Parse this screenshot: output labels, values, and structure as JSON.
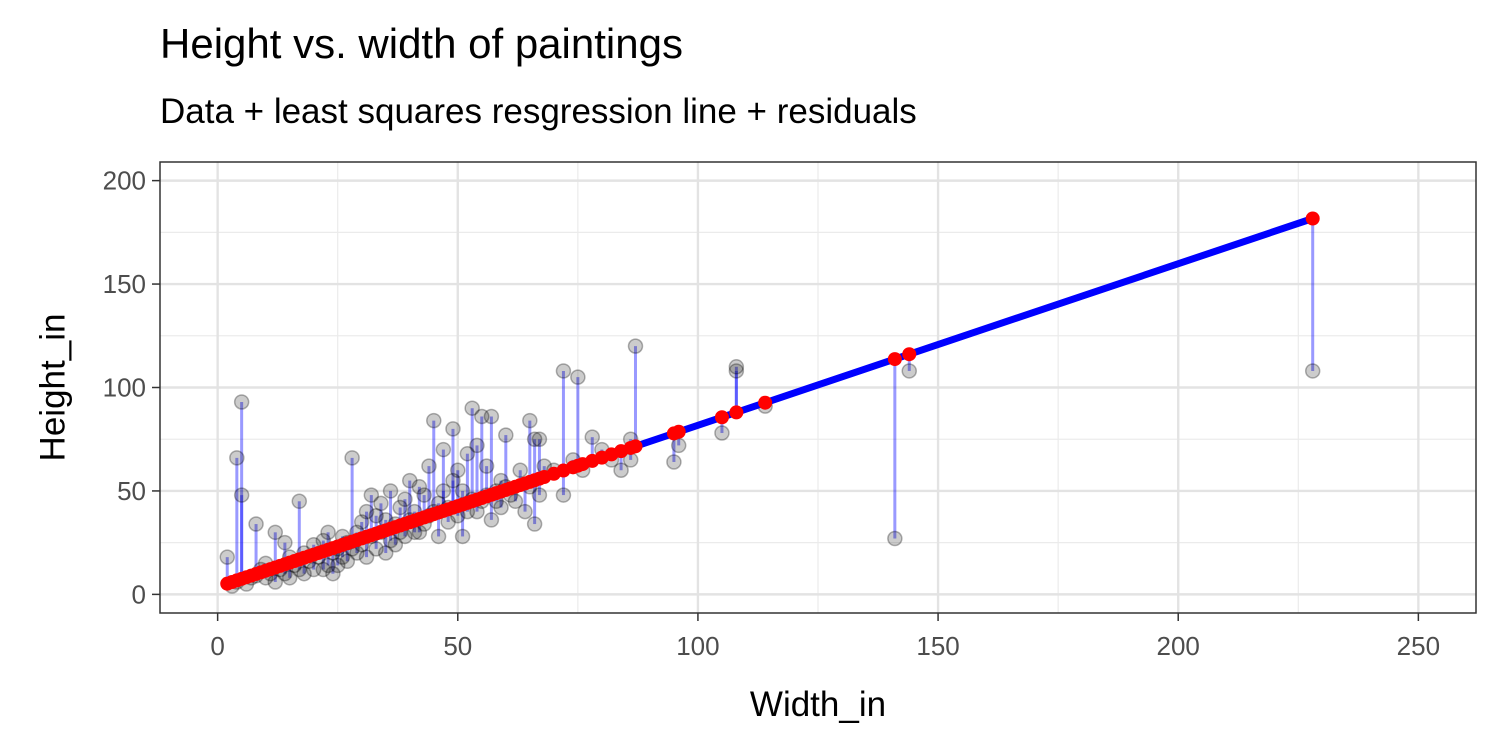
{
  "title": "Height vs. width of paintings",
  "subtitle": "Data + least squares resgression line + residuals",
  "chart_data": {
    "type": "scatter",
    "title": "Height vs. width of paintings",
    "subtitle": "Data + least squares resgression line + residuals",
    "xlabel": "Width_in",
    "ylabel": "Height_in",
    "xlim": [
      -12,
      262
    ],
    "ylim": [
      -9,
      209
    ],
    "xticks": [
      0,
      50,
      100,
      150,
      200,
      250
    ],
    "yticks": [
      0,
      50,
      100,
      150,
      200
    ],
    "grid": true,
    "legend": "none",
    "regression": {
      "intercept": 3.62,
      "slope": 0.781,
      "x_range": [
        2,
        228
      ],
      "color": "#0000ff"
    },
    "colors": {
      "points": "#000000",
      "fitted": "#ff0000",
      "residual": "#0000ff",
      "line": "#0000ff"
    },
    "points": [
      [
        2,
        18
      ],
      [
        3,
        4
      ],
      [
        4,
        66
      ],
      [
        4,
        6
      ],
      [
        5,
        48
      ],
      [
        5,
        93
      ],
      [
        6,
        5
      ],
      [
        7,
        8
      ],
      [
        8,
        34
      ],
      [
        8,
        9
      ],
      [
        9,
        12
      ],
      [
        10,
        8
      ],
      [
        10,
        15
      ],
      [
        11,
        10
      ],
      [
        12,
        30
      ],
      [
        12,
        6
      ],
      [
        13,
        12
      ],
      [
        14,
        25
      ],
      [
        14,
        10
      ],
      [
        15,
        8
      ],
      [
        15,
        18
      ],
      [
        16,
        14
      ],
      [
        17,
        45
      ],
      [
        17,
        12
      ],
      [
        18,
        20
      ],
      [
        18,
        10
      ],
      [
        19,
        16
      ],
      [
        20,
        24
      ],
      [
        20,
        12
      ],
      [
        21,
        18
      ],
      [
        22,
        26
      ],
      [
        22,
        12
      ],
      [
        23,
        30
      ],
      [
        23,
        14
      ],
      [
        24,
        20
      ],
      [
        24,
        10
      ],
      [
        25,
        22
      ],
      [
        25,
        14
      ],
      [
        26,
        18
      ],
      [
        26,
        28
      ],
      [
        27,
        25
      ],
      [
        27,
        16
      ],
      [
        28,
        66
      ],
      [
        28,
        22
      ],
      [
        29,
        30
      ],
      [
        29,
        20
      ],
      [
        30,
        35
      ],
      [
        30,
        24
      ],
      [
        31,
        40
      ],
      [
        31,
        18
      ],
      [
        32,
        28
      ],
      [
        32,
        48
      ],
      [
        33,
        38
      ],
      [
        33,
        22
      ],
      [
        34,
        30
      ],
      [
        34,
        44
      ],
      [
        35,
        36
      ],
      [
        35,
        20
      ],
      [
        36,
        26
      ],
      [
        36,
        50
      ],
      [
        37,
        34
      ],
      [
        37,
        24
      ],
      [
        38,
        42
      ],
      [
        38,
        30
      ],
      [
        39,
        28
      ],
      [
        39,
        46
      ],
      [
        40,
        55
      ],
      [
        40,
        36
      ],
      [
        41,
        40
      ],
      [
        41,
        30
      ],
      [
        42,
        30
      ],
      [
        42,
        52
      ],
      [
        43,
        48
      ],
      [
        43,
        34
      ],
      [
        44,
        62
      ],
      [
        44,
        38
      ],
      [
        45,
        84
      ],
      [
        45,
        40
      ],
      [
        46,
        44
      ],
      [
        46,
        28
      ],
      [
        47,
        70
      ],
      [
        47,
        50
      ],
      [
        48,
        42
      ],
      [
        48,
        35
      ],
      [
        49,
        80
      ],
      [
        49,
        55
      ],
      [
        50,
        60
      ],
      [
        50,
        38
      ],
      [
        51,
        28
      ],
      [
        51,
        50
      ],
      [
        52,
        68
      ],
      [
        52,
        40
      ],
      [
        53,
        90
      ],
      [
        53,
        46
      ],
      [
        54,
        72
      ],
      [
        54,
        40
      ],
      [
        55,
        86
      ],
      [
        55,
        45
      ],
      [
        56,
        62
      ],
      [
        56,
        48
      ],
      [
        57,
        86
      ],
      [
        57,
        36
      ],
      [
        58,
        50
      ],
      [
        58,
        45
      ],
      [
        59,
        55
      ],
      [
        59,
        42
      ],
      [
        60,
        77
      ],
      [
        60,
        52
      ],
      [
        61,
        48
      ],
      [
        62,
        45
      ],
      [
        63,
        60
      ],
      [
        64,
        40
      ],
      [
        65,
        84
      ],
      [
        65,
        52
      ],
      [
        66,
        34
      ],
      [
        66,
        75
      ],
      [
        67,
        48
      ],
      [
        67,
        75
      ],
      [
        68,
        62
      ],
      [
        70,
        60
      ],
      [
        72,
        108
      ],
      [
        72,
        48
      ],
      [
        74,
        65
      ],
      [
        75,
        105
      ],
      [
        76,
        60
      ],
      [
        78,
        76
      ],
      [
        80,
        70
      ],
      [
        82,
        65
      ],
      [
        84,
        60
      ],
      [
        86,
        75
      ],
      [
        86,
        65
      ],
      [
        87,
        120
      ],
      [
        95,
        64
      ],
      [
        96,
        72
      ],
      [
        105,
        78
      ],
      [
        108,
        110
      ],
      [
        108,
        108
      ],
      [
        114,
        91
      ],
      [
        141,
        27
      ],
      [
        144,
        108
      ],
      [
        228,
        108
      ]
    ]
  }
}
